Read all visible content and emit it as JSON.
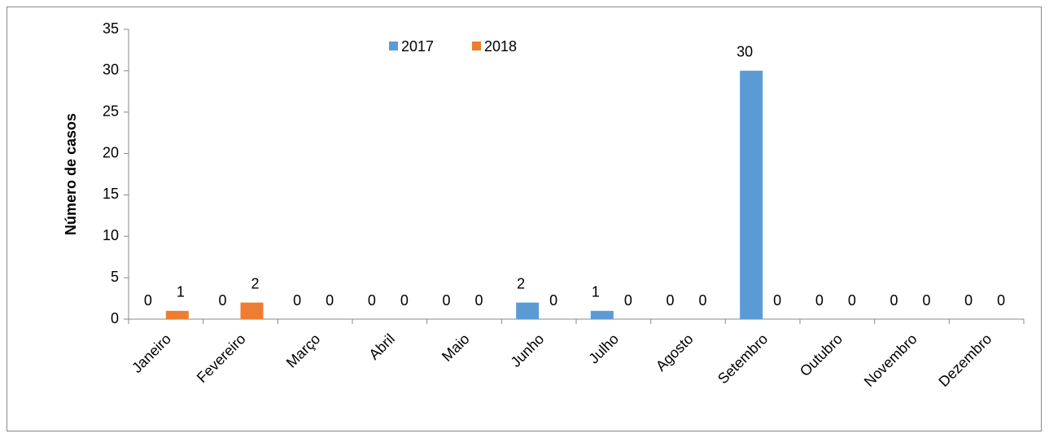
{
  "chart_data": {
    "type": "bar",
    "y_label": "Número de casos",
    "categories": [
      "Janeiro",
      "Fevereiro",
      "Março",
      "Abril",
      "Maio",
      "Junho",
      "Julho",
      "Agosto",
      "Setembro",
      "Outubro",
      "Novembro",
      "Dezembro"
    ],
    "series": [
      {
        "name": "2017",
        "color": "#5b9bd5",
        "values": [
          0,
          0,
          0,
          0,
          0,
          2,
          1,
          0,
          30,
          0,
          0,
          0
        ]
      },
      {
        "name": "2018",
        "color": "#ed7d31",
        "values": [
          1,
          2,
          0,
          0,
          0,
          0,
          0,
          0,
          0,
          0,
          0,
          0
        ]
      }
    ],
    "ylim": [
      0,
      35
    ],
    "yticks": [
      0,
      5,
      10,
      15,
      20,
      25,
      30,
      35
    ],
    "legend": "top"
  }
}
